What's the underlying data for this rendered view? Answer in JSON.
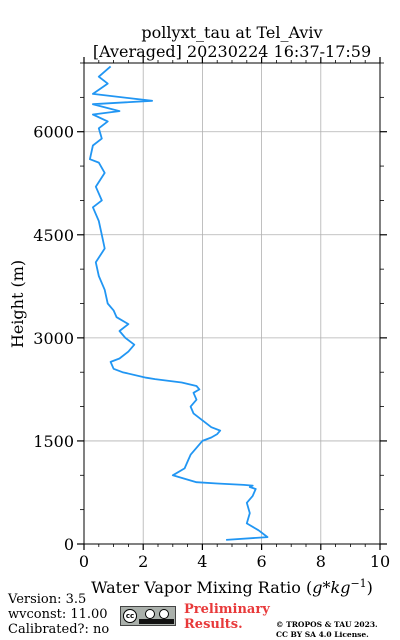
{
  "chart_data": {
    "type": "line",
    "title": "pollyxt_tau at Tel_Aviv",
    "subtitle": "[Averaged] 20230224 16:37-17:59",
    "xlabel": "Water Vapor Mixing Ratio ($g*kg^{-1}$)",
    "ylabel": "Height (m)",
    "xlim": [
      0,
      10
    ],
    "ylim": [
      0,
      7000
    ],
    "xticks": [
      0,
      2,
      4,
      6,
      8,
      10
    ],
    "yticks": [
      0,
      1500,
      3000,
      4500,
      6000
    ],
    "grid": true,
    "line_color": "#2196f3",
    "series": [
      {
        "x": [
          4.8,
          6.2,
          5.9,
          5.5,
          5.6,
          5.5,
          5.7,
          5.8,
          5.6,
          5.7,
          5.4,
          4.5,
          3.8,
          3.4,
          3.0,
          3.4,
          3.5,
          3.6,
          3.8,
          4.0,
          4.3,
          4.5,
          4.6,
          4.3,
          4.0,
          3.7,
          3.6,
          3.8,
          3.7,
          3.9,
          3.8,
          3.3,
          2.4,
          2.1,
          1.3,
          1.0,
          0.9,
          1.2,
          1.5,
          1.7,
          1.4,
          1.2,
          1.5,
          1.1,
          1.0,
          0.8,
          0.7,
          0.5,
          0.4,
          0.7,
          0.6,
          0.5,
          0.3,
          0.6,
          0.4,
          0.7,
          0.5,
          0.2,
          0.3,
          0.6,
          0.5,
          0.8,
          0.3,
          1.2,
          0.3,
          2.3,
          0.3,
          0.8,
          0.5,
          0.9
        ],
        "y": [
          60,
          100,
          200,
          300,
          450,
          600,
          700,
          800,
          830,
          850,
          860,
          880,
          900,
          950,
          1000,
          1100,
          1200,
          1300,
          1400,
          1500,
          1550,
          1600,
          1650,
          1700,
          1800,
          1900,
          2000,
          2100,
          2200,
          2250,
          2300,
          2350,
          2400,
          2420,
          2500,
          2550,
          2650,
          2700,
          2800,
          2900,
          3000,
          3100,
          3200,
          3300,
          3400,
          3500,
          3700,
          3900,
          4100,
          4300,
          4500,
          4700,
          4900,
          5000,
          5200,
          5400,
          5550,
          5600,
          5800,
          5900,
          6050,
          6150,
          6250,
          6300,
          6400,
          6450,
          6550,
          6700,
          6800,
          6950
        ]
      }
    ]
  },
  "footer": {
    "version": "Version: 3.5",
    "wvconst": "wvconst:  11.00",
    "calibrated": "Calibrated?: no",
    "license_badge_icon": "cc-by-sa-icon",
    "preliminary_line1": "Preliminary",
    "preliminary_line2": "Results.",
    "copyright_line1": "© TROPOS & TAU 2023.",
    "copyright_line2": "CC BY SA 4.0 License."
  }
}
